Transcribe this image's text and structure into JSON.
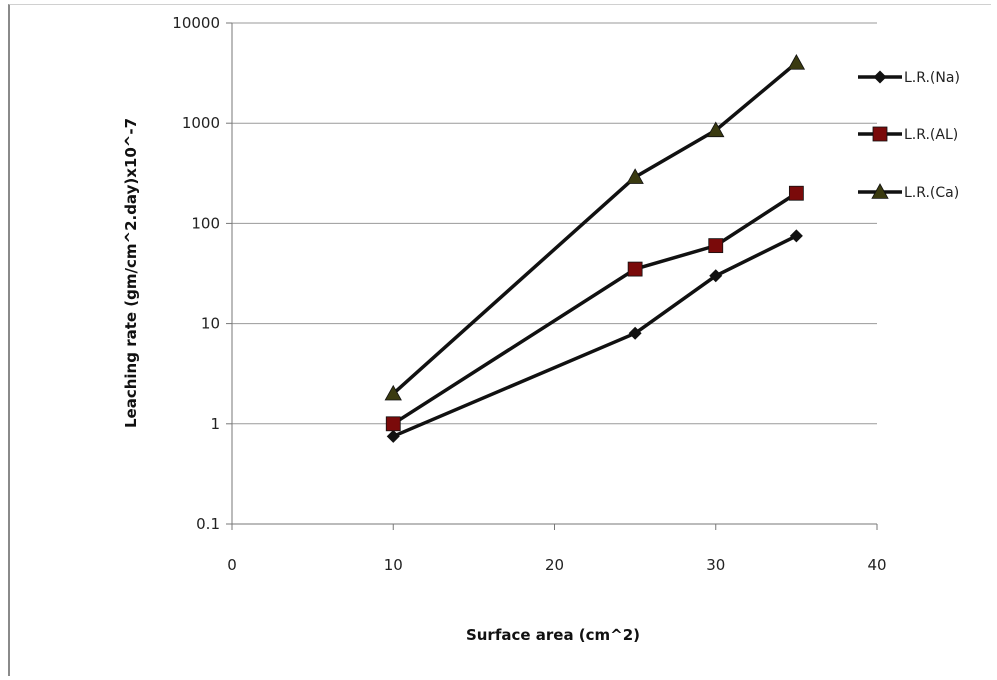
{
  "chart_data": {
    "type": "line",
    "title": "",
    "xlabel": "Surface area (cm^2)",
    "ylabel": "Leaching rate (gm/cm^2.day)x10^-7",
    "x_scale": "linear",
    "y_scale": "log",
    "xlim": [
      0,
      40
    ],
    "ylim": [
      0.1,
      10000
    ],
    "x_ticks": [
      "0",
      "10",
      "20",
      "30",
      "40"
    ],
    "y_ticks": [
      "0.1",
      "1",
      "10",
      "100",
      "1000",
      "10000"
    ],
    "grid": "horizontal major gridlines",
    "legend_position": "right",
    "x": [
      10,
      25,
      30,
      35
    ],
    "series": [
      {
        "name": "L.R.(Na)",
        "marker": "diamond",
        "color": "#111111",
        "values": [
          0.75,
          8,
          30,
          75
        ]
      },
      {
        "name": "L.R.(AL)",
        "marker": "square",
        "color": "#111111",
        "marker_color": "#7a0a0a",
        "values": [
          1.0,
          35,
          60,
          200
        ]
      },
      {
        "name": "L.R.(Ca)",
        "marker": "triangle",
        "color": "#111111",
        "marker_color": "#3a3a10",
        "values": [
          2.0,
          290,
          850,
          4000
        ]
      }
    ]
  }
}
